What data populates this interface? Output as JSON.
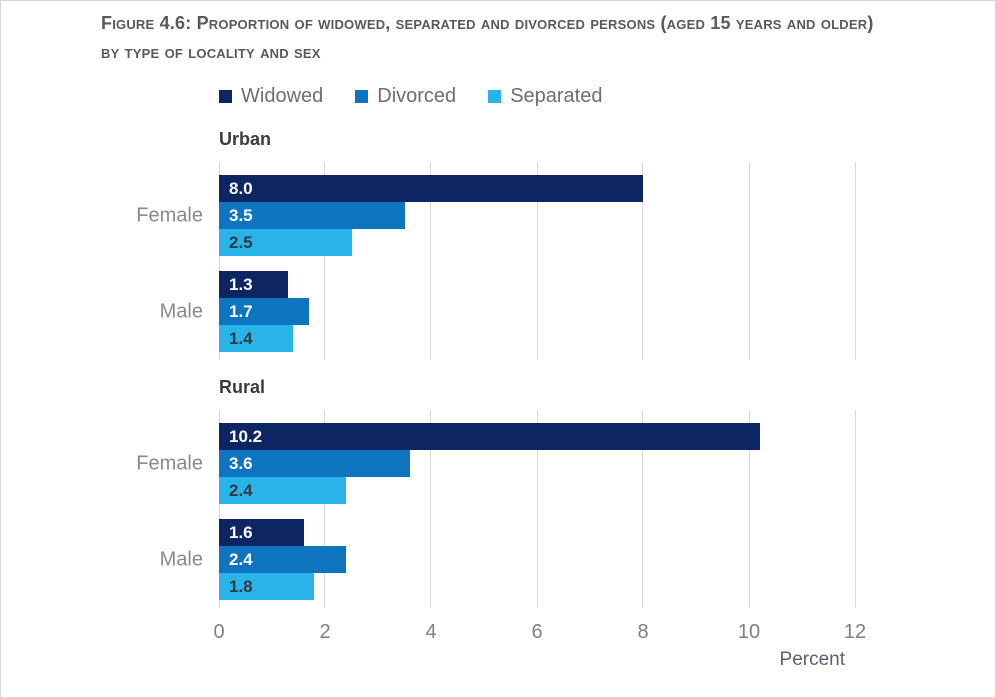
{
  "title": {
    "line1": "Figure 4.6: Proportion of widowed, separated and divorced persons (aged 15 years and older)",
    "line2": "by type of locality and sex"
  },
  "legend": [
    {
      "label": "Widowed",
      "color": "#0d2563"
    },
    {
      "label": "Divorced",
      "color": "#0e74bf"
    },
    {
      "label": "Separated",
      "color": "#29b4e9"
    }
  ],
  "chart_data": {
    "type": "bar",
    "orientation": "horizontal",
    "title": "Figure 4.6: Proportion of widowed, separated and divorced persons (aged 15 years and older) by type of locality and sex",
    "xlabel": "Percent",
    "xlim": [
      0,
      12
    ],
    "x_ticks": [
      0,
      2,
      4,
      6,
      8,
      10,
      12
    ],
    "grid": true,
    "legend_position": "top",
    "series_names": [
      "Widowed",
      "Divorced",
      "Separated"
    ],
    "series_colors": [
      "#0d2563",
      "#0e74bf",
      "#29b4e9"
    ],
    "value_label_decimals": 1,
    "panels": [
      {
        "title": "Urban",
        "groups": [
          {
            "label": "Female",
            "values": [
              8.0,
              3.5,
              2.5
            ]
          },
          {
            "label": "Male",
            "values": [
              1.3,
              1.7,
              1.4
            ]
          }
        ]
      },
      {
        "title": "Rural",
        "groups": [
          {
            "label": "Female",
            "values": [
              10.2,
              3.6,
              2.4
            ]
          },
          {
            "label": "Male",
            "values": [
              1.6,
              2.4,
              1.8
            ]
          }
        ]
      }
    ]
  },
  "colors": {
    "grid": "#d9d9d9",
    "title_text": "#595959",
    "panel_title_text": "#3c3c3c",
    "axis_text": "#7f7f7f",
    "value_label_light": "#ffffff",
    "value_label_dark": "#323a43"
  }
}
